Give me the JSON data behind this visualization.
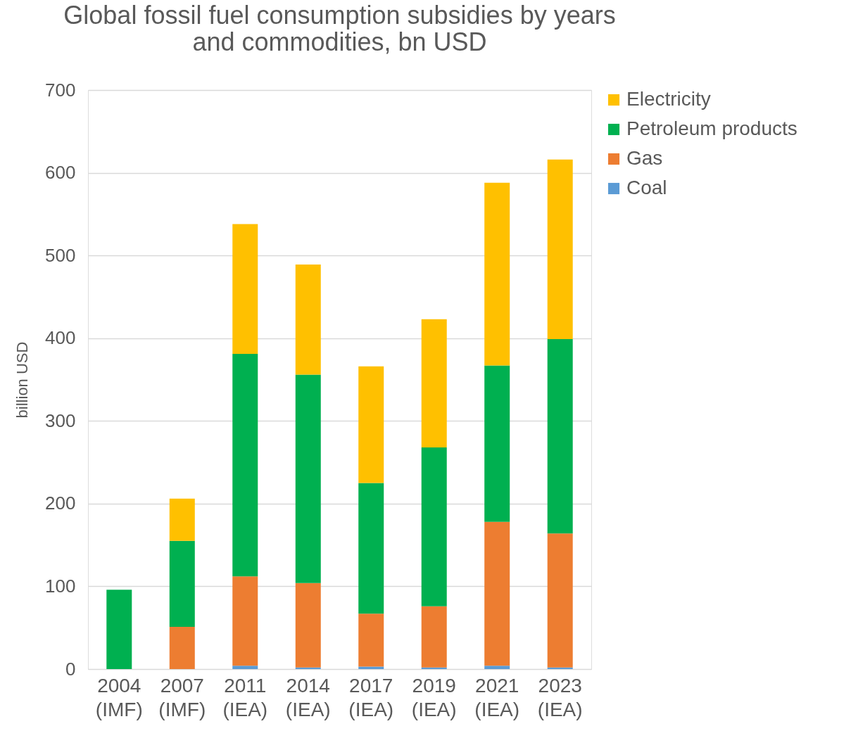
{
  "chart_data": {
    "type": "bar",
    "stacked": true,
    "title": "Global fossil fuel consumption subsidies by years\nand commodities, bn USD",
    "ylabel": "billion USD",
    "categories": [
      "2004\n(IMF)",
      "2007\n(IMF)",
      "2011\n(IEA)",
      "2014\n(IEA)",
      "2017\n(IEA)",
      "2019\n(IEA)",
      "2021\n(IEA)",
      "2023\n(IEA)"
    ],
    "series": [
      {
        "name": "Coal",
        "color": "#5b9bd5",
        "values": [
          0,
          0,
          4,
          2,
          3,
          2,
          4,
          2
        ]
      },
      {
        "name": "Gas",
        "color": "#ed7d31",
        "values": [
          0,
          51,
          108,
          102,
          64,
          74,
          174,
          162
        ]
      },
      {
        "name": "Petroleum products",
        "color": "#00b050",
        "values": [
          96,
          104,
          269,
          252,
          158,
          192,
          189,
          235
        ]
      },
      {
        "name": "Electricity",
        "color": "#ffc000",
        "values": [
          0,
          51,
          157,
          133,
          141,
          155,
          221,
          217
        ]
      }
    ],
    "ylim": [
      0,
      700
    ],
    "yticks": [
      0,
      100,
      200,
      300,
      400,
      500,
      600,
      700
    ],
    "grid": "y",
    "legend": "right"
  }
}
